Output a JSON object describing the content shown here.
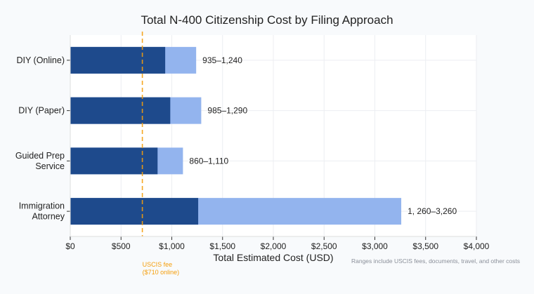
{
  "chart_data": {
    "type": "bar",
    "orientation": "horizontal",
    "stacked_range": true,
    "title": "Total N-400 Citizenship Cost by Filing Approach",
    "xlabel": "Total Estimated Cost (USD)",
    "ylabel": "",
    "xlim": [
      0,
      4000
    ],
    "xticks": [
      0,
      500,
      1000,
      1500,
      2000,
      2500,
      3000,
      3500,
      4000
    ],
    "xtick_labels": [
      "$0",
      "$500",
      "$1,000",
      "$1,500",
      "$2,000",
      "$2,500",
      "$3,000",
      "$3,500",
      "$4,000"
    ],
    "grid": true,
    "categories": [
      [
        "DIY (Online)"
      ],
      [
        "DIY (Paper)"
      ],
      [
        "Guided Prep",
        "Service"
      ],
      [
        "Immigration",
        "Attorney"
      ]
    ],
    "low": [
      935,
      985,
      860,
      1260
    ],
    "high": [
      1240,
      1290,
      1110,
      3260
    ],
    "range_labels": [
      "935–1,240",
      "985–1,290",
      "860–1,110",
      "1, 260–3,260"
    ],
    "reference_line": {
      "value": 710,
      "label_lines": [
        "USCIS fee",
        "($710 online)"
      ],
      "color": "#f59e0b",
      "style": "dashed"
    },
    "footnote": "Ranges include USCIS fees, documents, travel, and other costs",
    "colors": {
      "low": "#1e4a8c",
      "high": "#93b4ee",
      "reference": "#f59e0b",
      "grid": "#eceef2"
    }
  }
}
